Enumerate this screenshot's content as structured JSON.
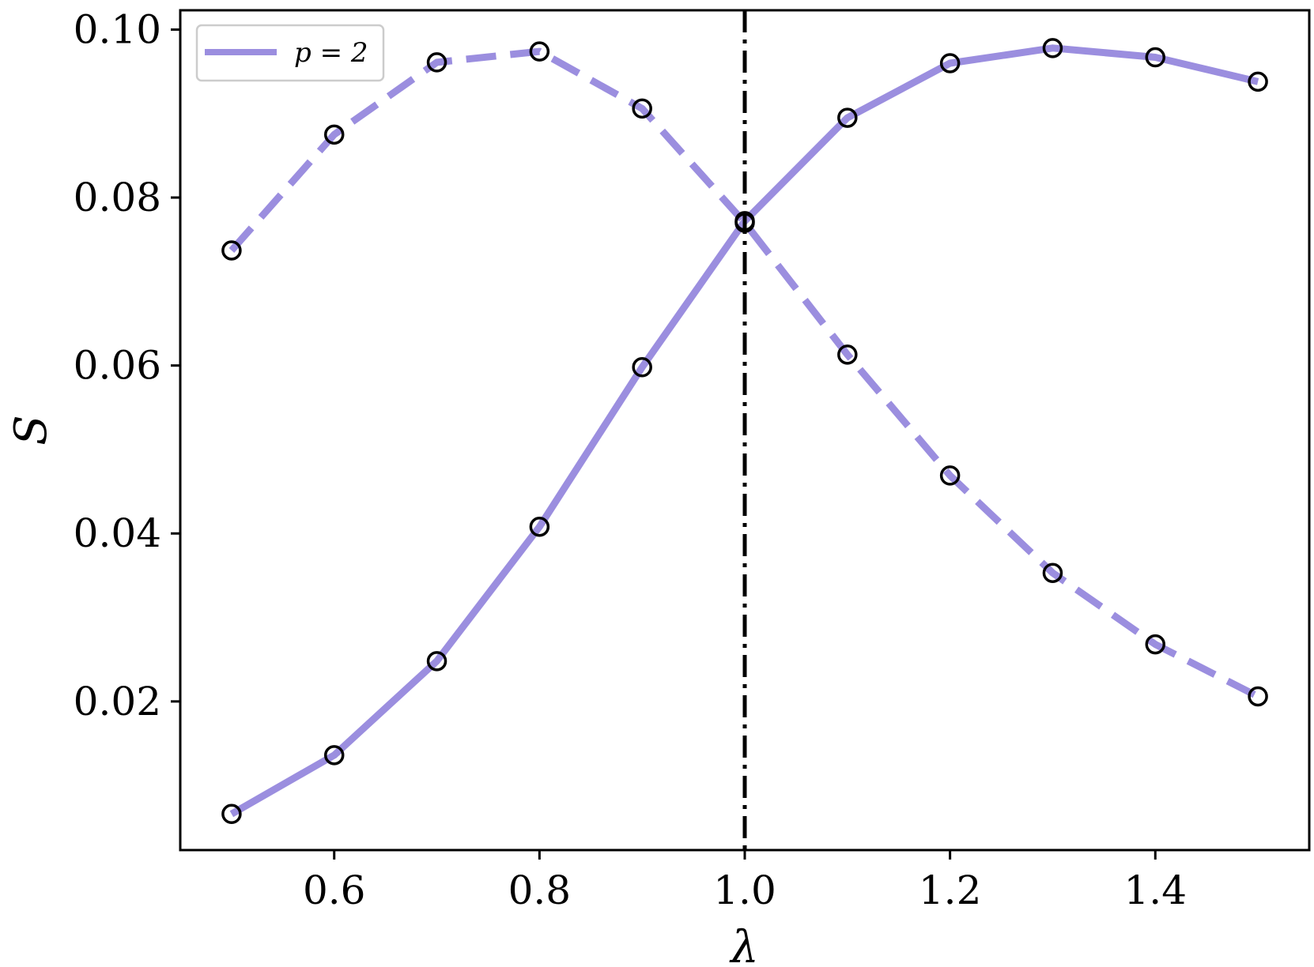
{
  "chart_data": {
    "type": "line",
    "xlabel": "λ",
    "ylabel": "S",
    "xlim": [
      0.45,
      1.55
    ],
    "ylim": [
      0.0023,
      0.1023
    ],
    "xticks": [
      0.6,
      0.8,
      1.0,
      1.2,
      1.4
    ],
    "xtick_labels": [
      "0.6",
      "0.8",
      "1.0",
      "1.2",
      "1.4"
    ],
    "yticks": [
      0.02,
      0.04,
      0.06,
      0.08,
      0.1
    ],
    "ytick_labels": [
      "0.02",
      "0.04",
      "0.06",
      "0.08",
      "0.10"
    ],
    "grid": false,
    "legend": {
      "placement": "top-left",
      "entries": [
        {
          "label": "p = 2",
          "style": "solid"
        }
      ]
    },
    "x": [
      0.5,
      0.6,
      0.7,
      0.8,
      0.9,
      1.0,
      1.1,
      1.2,
      1.3,
      1.4,
      1.5
    ],
    "series": [
      {
        "name": "p = 2",
        "style": "solid",
        "color": "#9b8edf",
        "values": [
          0.0066,
          0.0136,
          0.0248,
          0.0408,
          0.0598,
          0.0772,
          0.0895,
          0.096,
          0.0978,
          0.0967,
          0.0938
        ]
      },
      {
        "style": "dashed",
        "color": "#9b8edf",
        "values": [
          0.0737,
          0.0875,
          0.0961,
          0.0974,
          0.0906,
          0.077,
          0.0613,
          0.0469,
          0.0353,
          0.0268,
          0.0206
        ]
      }
    ],
    "markers": {
      "shape": "circle",
      "fill": "none",
      "edge_color": "#000000"
    },
    "vline": {
      "x": 1.0,
      "style": "dashdot",
      "color": "#000000"
    }
  }
}
